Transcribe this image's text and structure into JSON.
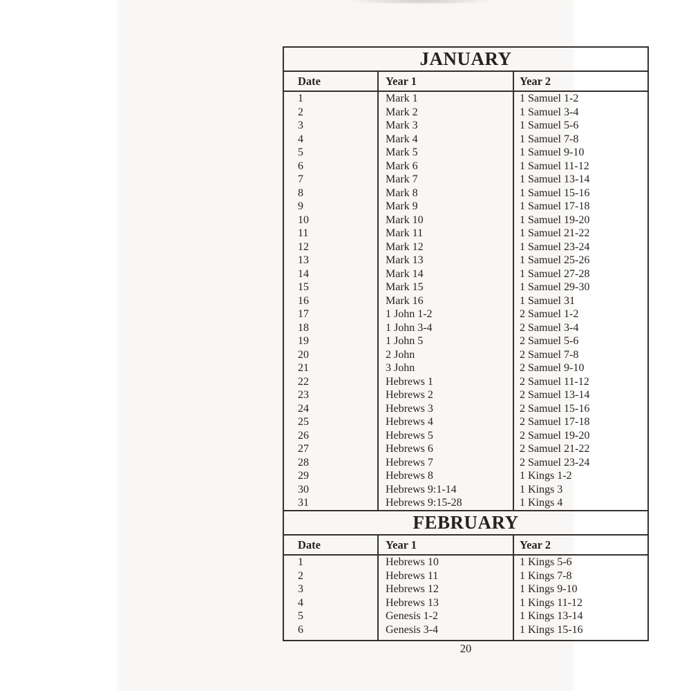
{
  "page_number": "20",
  "colors": {
    "paper": "#f8f7f5",
    "background": "#ffffff",
    "ink": "#26231f",
    "line": "#33302c"
  },
  "months": [
    {
      "title": "JANUARY",
      "columns": [
        "Date",
        "Year 1",
        "Year 2"
      ],
      "rows": [
        [
          "1",
          "Mark 1",
          "1 Samuel 1-2"
        ],
        [
          "2",
          "Mark 2",
          "1 Samuel 3-4"
        ],
        [
          "3",
          "Mark 3",
          "1 Samuel 5-6"
        ],
        [
          "4",
          "Mark 4",
          "1 Samuel 7-8"
        ],
        [
          "5",
          "Mark 5",
          "1 Samuel 9-10"
        ],
        [
          "6",
          "Mark 6",
          "1 Samuel 11-12"
        ],
        [
          "7",
          "Mark 7",
          "1 Samuel 13-14"
        ],
        [
          "8",
          "Mark 8",
          "1 Samuel 15-16"
        ],
        [
          "9",
          "Mark 9",
          "1 Samuel 17-18"
        ],
        [
          "10",
          "Mark 10",
          "1 Samuel 19-20"
        ],
        [
          "11",
          "Mark 11",
          "1 Samuel 21-22"
        ],
        [
          "12",
          "Mark 12",
          "1 Samuel 23-24"
        ],
        [
          "13",
          "Mark 13",
          "1 Samuel 25-26"
        ],
        [
          "14",
          "Mark 14",
          "1 Samuel 27-28"
        ],
        [
          "15",
          "Mark 15",
          "1 Samuel 29-30"
        ],
        [
          "16",
          "Mark 16",
          "1 Samuel 31"
        ],
        [
          "17",
          "1 John 1-2",
          "2 Samuel 1-2"
        ],
        [
          "18",
          "1 John 3-4",
          "2 Samuel 3-4"
        ],
        [
          "19",
          "1 John 5",
          "2 Samuel 5-6"
        ],
        [
          "20",
          "2 John",
          "2 Samuel 7-8"
        ],
        [
          "21",
          "3 John",
          "2 Samuel 9-10"
        ],
        [
          "22",
          "Hebrews 1",
          "2 Samuel 11-12"
        ],
        [
          "23",
          "Hebrews 2",
          "2 Samuel 13-14"
        ],
        [
          "24",
          "Hebrews 3",
          "2 Samuel 15-16"
        ],
        [
          "25",
          "Hebrews 4",
          "2 Samuel 17-18"
        ],
        [
          "26",
          "Hebrews 5",
          "2 Samuel 19-20"
        ],
        [
          "27",
          "Hebrews 6",
          "2 Samuel 21-22"
        ],
        [
          "28",
          "Hebrews 7",
          "2 Samuel 23-24"
        ],
        [
          "29",
          "Hebrews 8",
          "1 Kings 1-2"
        ],
        [
          "30",
          "Hebrews 9:1-14",
          "1 Kings 3"
        ],
        [
          "31",
          "Hebrews 9:15-28",
          "1 Kings 4"
        ]
      ]
    },
    {
      "title": "FEBRUARY",
      "columns": [
        "Date",
        "Year 1",
        "Year 2"
      ],
      "rows": [
        [
          "1",
          "Hebrews 10",
          "1 Kings 5-6"
        ],
        [
          "2",
          "Hebrews 11",
          "1 Kings 7-8"
        ],
        [
          "3",
          "Hebrews 12",
          "1 Kings 9-10"
        ],
        [
          "4",
          "Hebrews 13",
          "1 Kings 11-12"
        ],
        [
          "5",
          "Genesis 1-2",
          "1 Kings 13-14"
        ],
        [
          "6",
          "Genesis 3-4",
          "1 Kings 15-16"
        ]
      ]
    }
  ]
}
